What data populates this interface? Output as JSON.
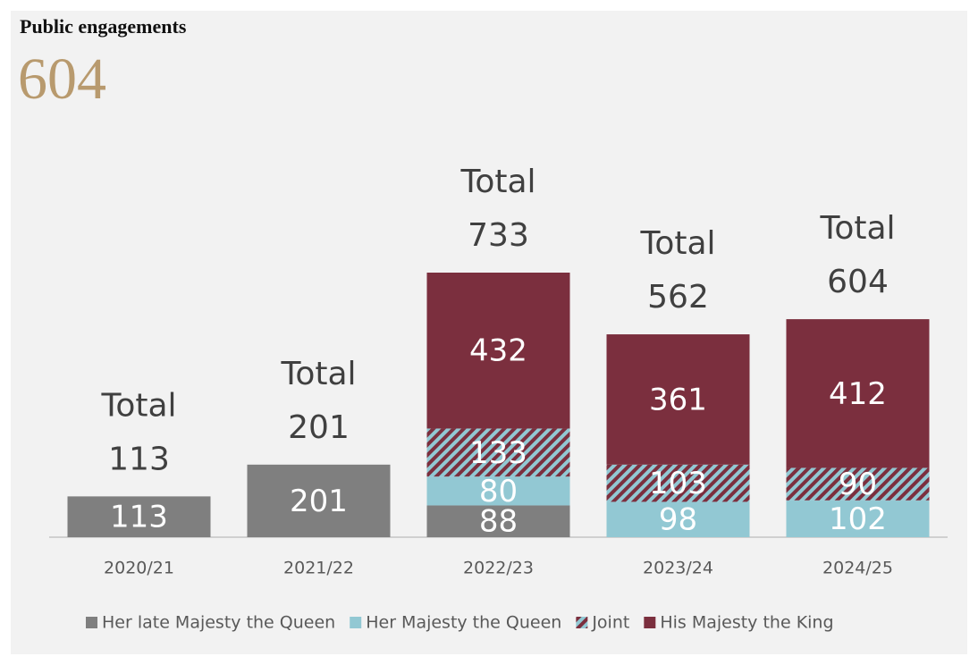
{
  "header": {
    "title": "Public engagements",
    "value": 604
  },
  "chart_data": {
    "type": "stacked-bar",
    "categories": [
      "2020/21",
      "2021/22",
      "2022/23",
      "2023/24",
      "2024/25"
    ],
    "series": [
      {
        "name": "Her late Majesty the Queen",
        "color": "#7f7f7f",
        "values": [
          113,
          201,
          88,
          null,
          null
        ]
      },
      {
        "name": "Her Majesty the Queen",
        "color": "#92c8d3",
        "values": [
          null,
          null,
          80,
          98,
          102
        ]
      },
      {
        "name": "Joint",
        "color": "#92c8d3",
        "hatch_color": "#7b2f3e",
        "values": [
          null,
          null,
          133,
          103,
          90
        ]
      },
      {
        "name": "His Majesty the King",
        "color": "#7b2f3e",
        "values": [
          null,
          null,
          432,
          361,
          412
        ]
      }
    ],
    "total_label": "Total",
    "totals": [
      113,
      201,
      733,
      562,
      604
    ],
    "legend": "bottom"
  }
}
